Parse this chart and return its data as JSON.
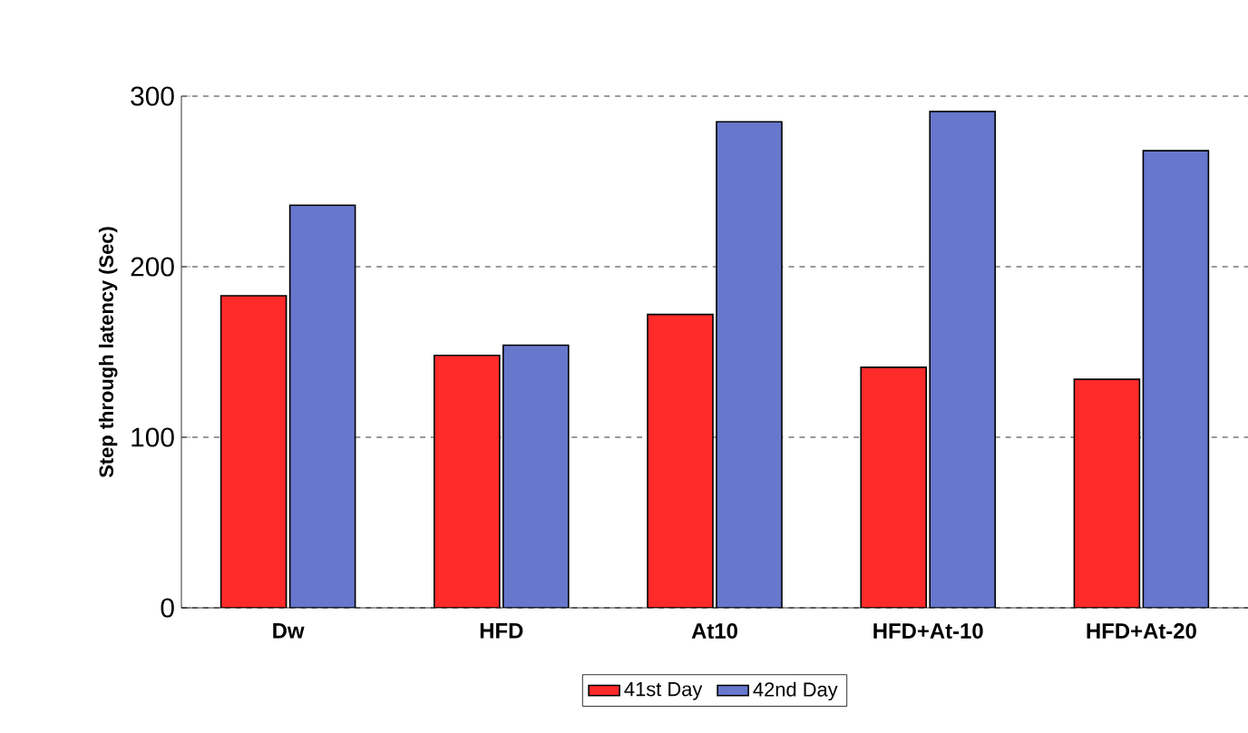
{
  "chart_data": {
    "type": "bar",
    "ylabel": "Step through latency (Sec)",
    "categories": [
      "Dw",
      "HFD",
      "At10",
      "HFD+At-10",
      "HFD+At-20"
    ],
    "series": [
      {
        "name": "41st Day",
        "color": "#ff2a2a",
        "values": [
          183,
          148,
          172,
          141,
          134
        ]
      },
      {
        "name": "42nd Day",
        "color": "#6677cc",
        "values": [
          236,
          154,
          285,
          291,
          268
        ]
      }
    ],
    "ylim": [
      0,
      300
    ],
    "yticks": [
      0,
      100,
      200,
      300
    ],
    "grid": "y",
    "legend": "bottom"
  }
}
